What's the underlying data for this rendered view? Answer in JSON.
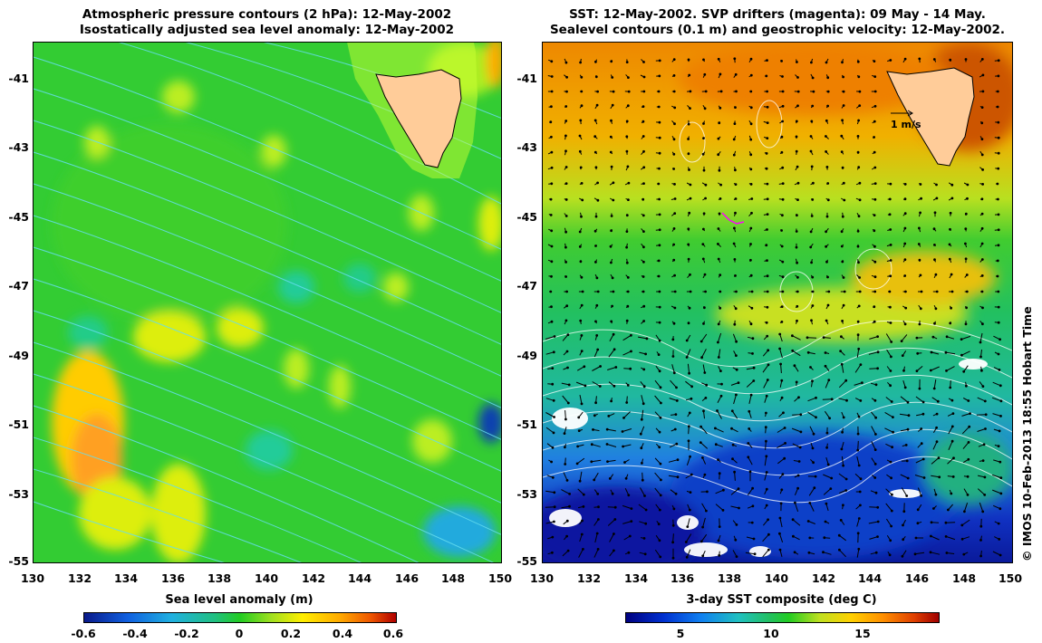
{
  "left_panel": {
    "title_line1": "Atmospheric pressure contours (2 hPa): 12-May-2002",
    "title_line2": "Isostatically adjusted sea level anomaly: 12-May-2002",
    "colorbar_title": "Sea level anomaly (m)",
    "colorbar_ticks": [
      "-0.6",
      "-0.4",
      "-0.2",
      "0",
      "0.2",
      "0.4",
      "0.6"
    ],
    "colorbar_range": [
      -0.6,
      0.6
    ],
    "colors": {
      "low": "#1030a0",
      "mid": "#22cc44",
      "high": "#c00000",
      "contour": "#66ccee"
    }
  },
  "right_panel": {
    "title_line1": "SST: 12-May-2002. SVP drifters (magenta): 09 May - 14 May.",
    "title_line2": "Sealevel contours (0.1 m) and geostrophic velocity: 12-May-2002.",
    "colorbar_title": "3-day SST composite (deg C)",
    "colorbar_ticks": [
      "5",
      "10",
      "15"
    ],
    "colorbar_tick_values": [
      5,
      10,
      15
    ],
    "colorbar_range": [
      1.5,
      18.5
    ],
    "velocity_scale_label": "1 m/s",
    "colors": {
      "cold": "#0a1a9a",
      "mid": "#22cc44",
      "warm": "#e08000",
      "drifter": "#ff00ff"
    }
  },
  "axes": {
    "x_ticks": [
      "130",
      "132",
      "134",
      "136",
      "138",
      "140",
      "142",
      "144",
      "146",
      "148",
      "150"
    ],
    "y_ticks": [
      "-41",
      "-43",
      "-45",
      "-47",
      "-49",
      "-51",
      "-53",
      "-55"
    ],
    "lon_range": [
      130,
      150
    ],
    "lat_range": [
      -55,
      -40
    ]
  },
  "landmass": {
    "name": "tasmania",
    "color": "#ffcc99"
  },
  "credit": "© IMOS 10-Feb-2013 18:55 Hobart Time"
}
